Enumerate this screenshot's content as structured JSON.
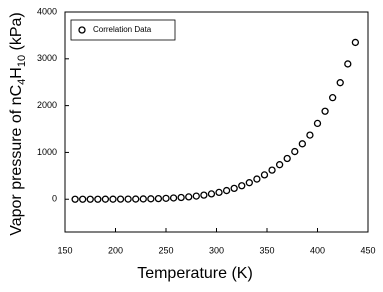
{
  "chart_data": {
    "type": "scatter",
    "xlabel": "Temperature (K)",
    "ylabel": "Vapor pressure of nC4H10 (kPa)",
    "xlim": [
      150,
      450
    ],
    "xticks": [
      150,
      200,
      250,
      300,
      350,
      400,
      450
    ],
    "ylim": [
      -700,
      4000
    ],
    "yticks": [
      0,
      1000,
      2000,
      3000,
      4000
    ],
    "legend": "upper left",
    "series": [
      {
        "name": "Correlation Data",
        "color": "#000000",
        "x": [
          160,
          167.5,
          175,
          182.5,
          190,
          197.5,
          205,
          212.5,
          220,
          227.5,
          235,
          242.5,
          250,
          257.5,
          265,
          272.5,
          280,
          287.5,
          295,
          302.5,
          310,
          317.5,
          325,
          332.5,
          340,
          347.5,
          355,
          362.5,
          370,
          377.5,
          385,
          392.5,
          400,
          407.5,
          415,
          422.5,
          430,
          437.5
        ],
        "values": [
          0,
          0,
          0,
          0,
          1,
          1,
          2,
          3,
          4,
          6,
          9,
          13,
          19,
          27,
          37,
          50,
          67,
          88,
          114,
          146,
          185,
          232,
          288,
          354,
          431,
          520,
          622,
          738,
          870,
          1018,
          1184,
          1370,
          1620,
          1880,
          2170,
          2490,
          2890,
          3350
        ]
      }
    ]
  }
}
